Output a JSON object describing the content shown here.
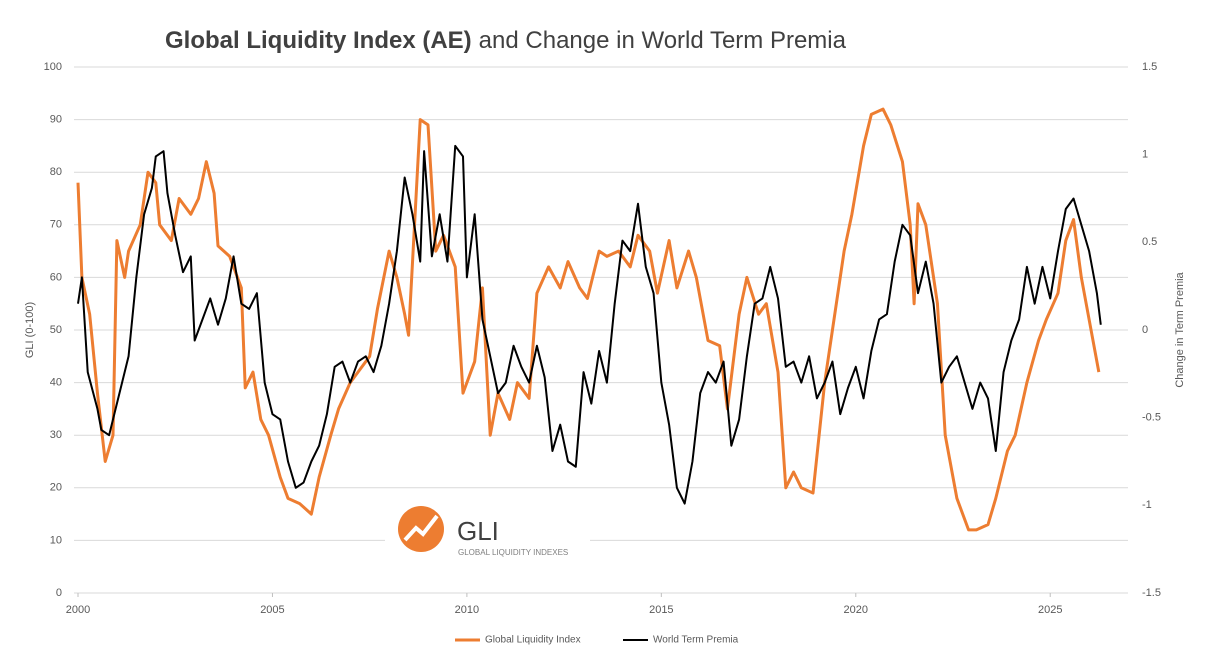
{
  "chart_data": {
    "type": "line",
    "title": [
      "Global Liquidity Index (AE)",
      "and Change in World Term Premia"
    ],
    "ylabel": "GLI (0-100)",
    "y2label": "Change in Term Premia",
    "logo": {
      "text": "GLI",
      "subtitle": "GLOBAL LIQUIDITY INDEXES"
    },
    "xlim": [
      2000,
      2027
    ],
    "xticks": [
      2000,
      2005,
      2010,
      2015,
      2020,
      2025
    ],
    "ylim": [
      0,
      100
    ],
    "yticks": [
      0,
      10,
      20,
      30,
      40,
      50,
      60,
      70,
      80,
      90,
      100
    ],
    "y2lim": [
      -1.5,
      1.5
    ],
    "y2ticks": [
      -1.5,
      -1,
      -0.5,
      0,
      0.5,
      1,
      1.5
    ],
    "grid": true,
    "legend": "bottom",
    "series": [
      {
        "name": "Global Liquidity Index",
        "color": "#ed7d31",
        "axis": "y",
        "x": [
          2000.0,
          2000.1,
          2000.3,
          2000.5,
          2000.7,
          2000.9,
          2001.0,
          2001.2,
          2001.3,
          2001.6,
          2001.8,
          2002.0,
          2002.1,
          2002.4,
          2002.6,
          2002.9,
          2003.1,
          2003.3,
          2003.5,
          2003.6,
          2003.9,
          2004.2,
          2004.3,
          2004.5,
          2004.7,
          2004.9,
          2005.2,
          2005.4,
          2005.7,
          2006.0,
          2006.2,
          2006.5,
          2006.7,
          2007.0,
          2007.2,
          2007.5,
          2007.7,
          2008.0,
          2008.2,
          2008.4,
          2008.5,
          2008.8,
          2009.0,
          2009.2,
          2009.4,
          2009.7,
          2009.9,
          2010.2,
          2010.4,
          2010.6,
          2010.8,
          2011.1,
          2011.3,
          2011.6,
          2011.8,
          2012.1,
          2012.4,
          2012.6,
          2012.9,
          2013.1,
          2013.4,
          2013.6,
          2013.9,
          2014.2,
          2014.4,
          2014.7,
          2014.9,
          2015.2,
          2015.4,
          2015.7,
          2015.9,
          2016.2,
          2016.5,
          2016.7,
          2017.0,
          2017.2,
          2017.5,
          2017.7,
          2018.0,
          2018.2,
          2018.4,
          2018.6,
          2018.9,
          2019.2,
          2019.4,
          2019.7,
          2019.9,
          2020.2,
          2020.4,
          2020.7,
          2020.9,
          2021.2,
          2021.4,
          2021.5,
          2021.6,
          2021.8,
          2022.1,
          2022.3,
          2022.6,
          2022.9,
          2023.1,
          2023.4,
          2023.6,
          2023.9,
          2024.1,
          2024.4,
          2024.7,
          2024.9,
          2025.2,
          2025.4,
          2025.6,
          2025.8,
          2026.0,
          2026.25
        ],
        "values": [
          78,
          60,
          53,
          38,
          25,
          30,
          67,
          60,
          65,
          70,
          80,
          78,
          70,
          67,
          75,
          72,
          75,
          82,
          76,
          66,
          64,
          58,
          39,
          42,
          33,
          30,
          22,
          18,
          17,
          15,
          22,
          30,
          35,
          40,
          42,
          45,
          54,
          65,
          60,
          53,
          49,
          90,
          89,
          65,
          68,
          62,
          38,
          44,
          58,
          30,
          38,
          33,
          40,
          37,
          57,
          62,
          58,
          63,
          58,
          56,
          65,
          64,
          65,
          62,
          68,
          65,
          57,
          67,
          58,
          65,
          60,
          48,
          47,
          35,
          53,
          60,
          53,
          55,
          42,
          20,
          23,
          20,
          19,
          40,
          50,
          65,
          72,
          85,
          91,
          92,
          89,
          82,
          70,
          55,
          74,
          70,
          55,
          30,
          18,
          12,
          12,
          13,
          18,
          27,
          30,
          40,
          48,
          52,
          57,
          67,
          71,
          60,
          52,
          42
        ]
      },
      {
        "name": "World Term Premia",
        "color": "#000000",
        "axis": "y2",
        "x": [
          2000.0,
          2000.1,
          2000.25,
          2000.5,
          2000.6,
          2000.8,
          2001.0,
          2001.3,
          2001.5,
          2001.7,
          2001.9,
          2002.0,
          2002.2,
          2002.3,
          2002.5,
          2002.7,
          2002.9,
          2003.0,
          2003.2,
          2003.4,
          2003.6,
          2003.8,
          2004.0,
          2004.2,
          2004.4,
          2004.6,
          2004.8,
          2005.0,
          2005.2,
          2005.4,
          2005.6,
          2005.8,
          2006.0,
          2006.2,
          2006.4,
          2006.6,
          2006.8,
          2007.0,
          2007.2,
          2007.4,
          2007.6,
          2007.8,
          2008.0,
          2008.2,
          2008.4,
          2008.6,
          2008.8,
          2008.9,
          2009.1,
          2009.3,
          2009.5,
          2009.7,
          2009.9,
          2010.0,
          2010.2,
          2010.4,
          2010.6,
          2010.8,
          2011.0,
          2011.2,
          2011.4,
          2011.6,
          2011.8,
          2012.0,
          2012.2,
          2012.4,
          2012.6,
          2012.8,
          2013.0,
          2013.2,
          2013.4,
          2013.6,
          2013.8,
          2014.0,
          2014.2,
          2014.4,
          2014.6,
          2014.8,
          2015.0,
          2015.2,
          2015.4,
          2015.6,
          2015.8,
          2016.0,
          2016.2,
          2016.4,
          2016.6,
          2016.8,
          2017.0,
          2017.2,
          2017.4,
          2017.6,
          2017.8,
          2018.0,
          2018.2,
          2018.4,
          2018.6,
          2018.8,
          2019.0,
          2019.2,
          2019.4,
          2019.6,
          2019.8,
          2020.0,
          2020.2,
          2020.4,
          2020.6,
          2020.8,
          2021.0,
          2021.2,
          2021.4,
          2021.6,
          2021.8,
          2022.0,
          2022.2,
          2022.4,
          2022.6,
          2022.8,
          2023.0,
          2023.2,
          2023.4,
          2023.6,
          2023.8,
          2024.0,
          2024.2,
          2024.4,
          2024.6,
          2024.8,
          2025.0,
          2025.2,
          2025.4,
          2025.6,
          2025.8,
          2026.0,
          2026.2,
          2026.3
        ],
        "values": [
          0.15,
          0.3,
          -0.24,
          -0.45,
          -0.57,
          -0.6,
          -0.42,
          -0.15,
          0.3,
          0.66,
          0.81,
          0.99,
          1.02,
          0.78,
          0.54,
          0.33,
          0.42,
          -0.06,
          0.06,
          0.18,
          0.03,
          0.18,
          0.42,
          0.15,
          0.12,
          0.21,
          -0.3,
          -0.48,
          -0.51,
          -0.75,
          -0.9,
          -0.87,
          -0.75,
          -0.66,
          -0.48,
          -0.21,
          -0.18,
          -0.3,
          -0.18,
          -0.15,
          -0.24,
          -0.09,
          0.15,
          0.45,
          0.87,
          0.66,
          0.39,
          1.02,
          0.42,
          0.66,
          0.39,
          1.05,
          0.99,
          0.3,
          0.66,
          0.06,
          -0.15,
          -0.36,
          -0.3,
          -0.09,
          -0.21,
          -0.3,
          -0.09,
          -0.27,
          -0.69,
          -0.54,
          -0.75,
          -0.78,
          -0.24,
          -0.42,
          -0.12,
          -0.3,
          0.15,
          0.51,
          0.45,
          0.72,
          0.36,
          0.21,
          -0.3,
          -0.54,
          -0.9,
          -0.99,
          -0.75,
          -0.36,
          -0.24,
          -0.3,
          -0.18,
          -0.66,
          -0.51,
          -0.15,
          0.15,
          0.18,
          0.36,
          0.18,
          -0.21,
          -0.18,
          -0.3,
          -0.15,
          -0.39,
          -0.3,
          -0.18,
          -0.48,
          -0.33,
          -0.21,
          -0.39,
          -0.12,
          0.06,
          0.09,
          0.39,
          0.6,
          0.54,
          0.21,
          0.39,
          0.15,
          -0.3,
          -0.21,
          -0.15,
          -0.3,
          -0.45,
          -0.3,
          -0.39,
          -0.69,
          -0.24,
          -0.06,
          0.06,
          0.36,
          0.15,
          0.36,
          0.18,
          0.45,
          0.69,
          0.75,
          0.6,
          0.45,
          0.21,
          0.03
        ]
      }
    ]
  }
}
